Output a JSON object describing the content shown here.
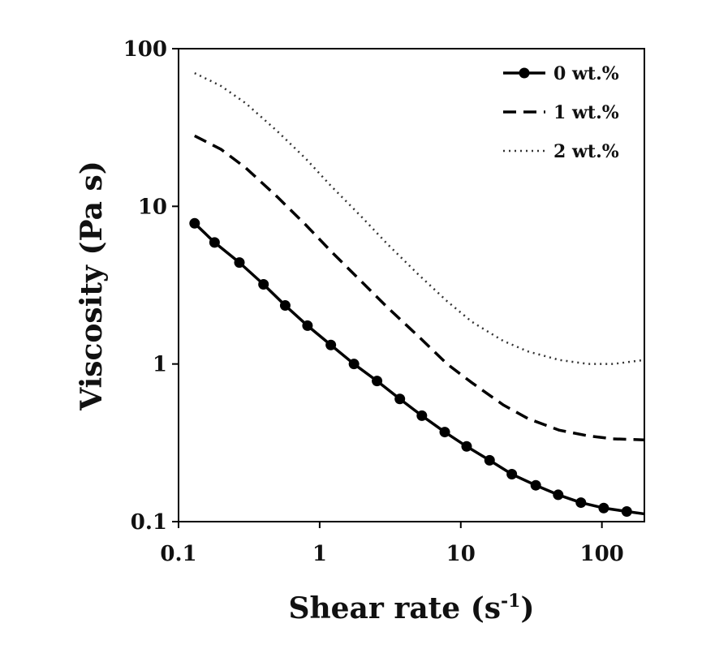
{
  "chart_data": {
    "type": "line",
    "title": "",
    "xlabel": "Shear rate (s",
    "xlabel_sup": "-1",
    "xlabel_close": ")",
    "ylabel": "Viscosity (Pa s)",
    "xscale": "log",
    "yscale": "log",
    "xlim": [
      0.1,
      200
    ],
    "ylim": [
      0.1,
      100
    ],
    "x_ticks": [
      {
        "value": 0.1,
        "label": "0.1"
      },
      {
        "value": 1,
        "label": "1"
      },
      {
        "value": 10,
        "label": "10"
      },
      {
        "value": 100,
        "label": "100"
      }
    ],
    "y_ticks": [
      {
        "value": 0.1,
        "label": "0.1"
      },
      {
        "value": 1,
        "label": "1"
      },
      {
        "value": 10,
        "label": "10"
      },
      {
        "value": 100,
        "label": "100"
      }
    ],
    "grid": false,
    "legend_position": "top-right",
    "series": [
      {
        "name": "0 wt.%",
        "style": "solid-markers",
        "color": "#000000",
        "x": [
          0.13,
          0.18,
          0.27,
          0.4,
          0.57,
          0.82,
          1.2,
          1.75,
          2.55,
          3.7,
          5.3,
          7.7,
          11,
          16,
          23,
          34,
          49,
          71,
          103,
          150,
          200
        ],
        "y": [
          7.8,
          5.9,
          4.4,
          3.2,
          2.35,
          1.75,
          1.32,
          1.0,
          0.78,
          0.6,
          0.47,
          0.37,
          0.3,
          0.245,
          0.2,
          0.17,
          0.148,
          0.132,
          0.122,
          0.116,
          0.112
        ],
        "markers_x": [
          0.13,
          0.18,
          0.27,
          0.4,
          0.57,
          0.82,
          1.2,
          1.75,
          2.55,
          3.7,
          5.3,
          7.7,
          11,
          16,
          23,
          34,
          49,
          71,
          103,
          150
        ],
        "markers_y": [
          7.8,
          5.9,
          4.4,
          3.2,
          2.35,
          1.75,
          1.32,
          1.0,
          0.78,
          0.6,
          0.47,
          0.37,
          0.3,
          0.245,
          0.2,
          0.17,
          0.148,
          0.132,
          0.122,
          0.116
        ]
      },
      {
        "name": "1 wt.%",
        "style": "dashed",
        "color": "#000000",
        "x": [
          0.13,
          0.2,
          0.3,
          0.5,
          0.8,
          1.2,
          2,
          3,
          5,
          8,
          12,
          20,
          30,
          50,
          80,
          120,
          200
        ],
        "y": [
          28,
          23,
          17.5,
          11.5,
          7.6,
          5.2,
          3.3,
          2.3,
          1.5,
          1.0,
          0.76,
          0.55,
          0.45,
          0.38,
          0.35,
          0.335,
          0.33
        ]
      },
      {
        "name": "2 wt.%",
        "style": "dotted",
        "color": "#333333",
        "x": [
          0.13,
          0.2,
          0.3,
          0.5,
          0.8,
          1.2,
          2,
          3,
          5,
          8,
          12,
          20,
          30,
          50,
          80,
          120,
          200
        ],
        "y": [
          70,
          58,
          45,
          30,
          20,
          13.5,
          8.5,
          5.8,
          3.7,
          2.5,
          1.85,
          1.4,
          1.2,
          1.06,
          1.0,
          1.0,
          1.06
        ]
      }
    ]
  }
}
